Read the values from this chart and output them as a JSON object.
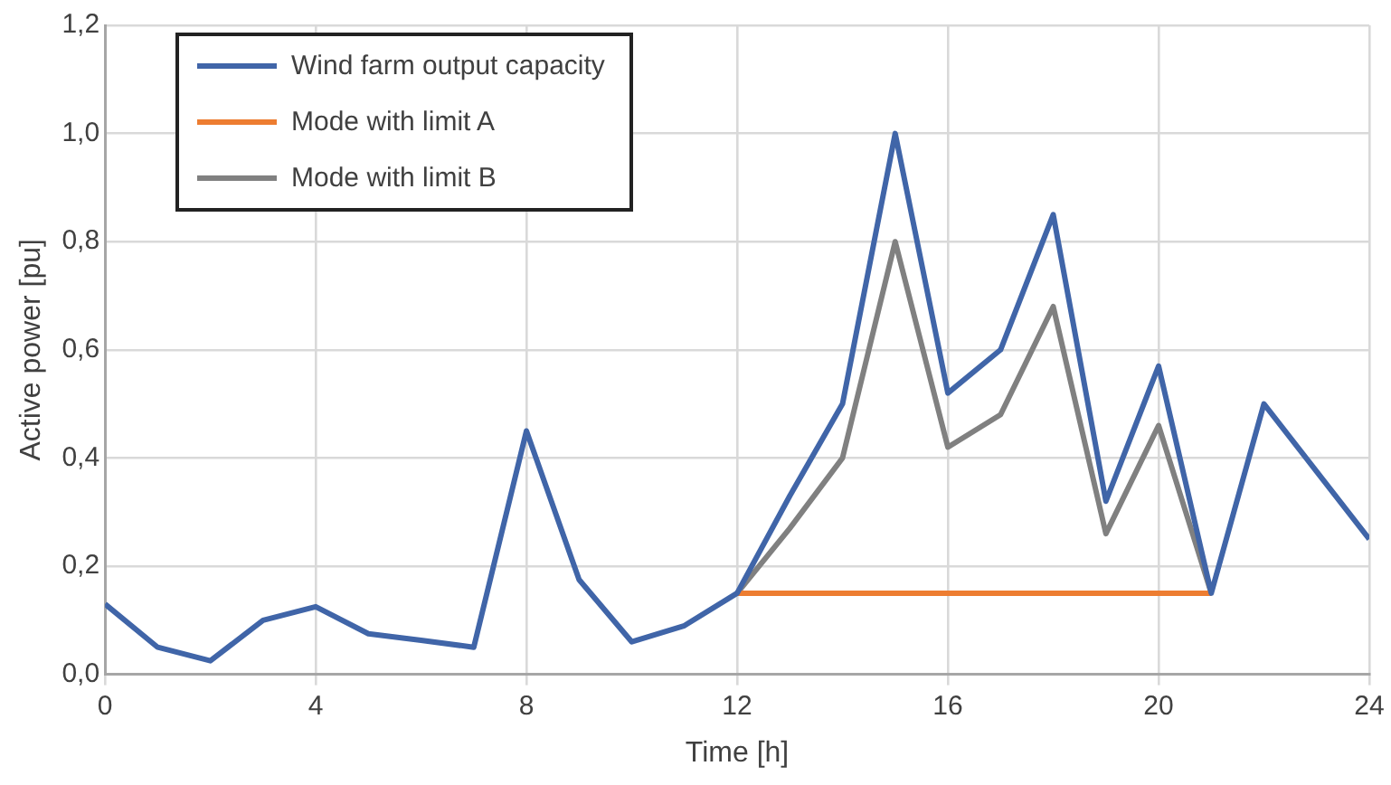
{
  "chart_data": {
    "type": "line",
    "xlabel": "Time [h]",
    "ylabel": "Active power [pu]",
    "xlim": [
      0,
      24
    ],
    "xticks": [
      0,
      4,
      8,
      12,
      16,
      20,
      24
    ],
    "ylim": [
      0,
      1.2
    ],
    "yticks": [
      {
        "value": 0,
        "label": "0,0"
      },
      {
        "value": 0.2,
        "label": "0,2"
      },
      {
        "value": 0.4,
        "label": "0,4"
      },
      {
        "value": 0.6,
        "label": "0,6"
      },
      {
        "value": 0.8,
        "label": "0,8"
      },
      {
        "value": 1.0,
        "label": "1,0"
      },
      {
        "value": 1.2,
        "label": "1,2"
      }
    ],
    "grid": true,
    "legend": "top left",
    "marker": "none",
    "line_style": "solid",
    "series": [
      {
        "name": "Wind farm output capacity",
        "color": "#4065a8",
        "x": [
          0,
          1,
          2,
          3,
          4,
          5,
          6,
          7,
          8,
          9,
          10,
          11,
          12,
          13,
          14,
          15,
          16,
          17,
          18,
          19,
          20,
          21,
          22,
          23,
          24
        ],
        "values": [
          0.13,
          0.05,
          0.025,
          0.1,
          0.125,
          0.075,
          0.063,
          0.05,
          0.45,
          0.175,
          0.06,
          0.09,
          0.15,
          0.33,
          0.5,
          1.0,
          0.52,
          0.6,
          0.85,
          0.32,
          0.57,
          0.15,
          0.5,
          0.375,
          0.25
        ]
      },
      {
        "name": "Mode with limit A",
        "color": "#ed7d31",
        "x": [
          12,
          21
        ],
        "values": [
          0.15,
          0.15
        ]
      },
      {
        "name": "Mode with limit B",
        "color": "#808080",
        "x": [
          12,
          13,
          14,
          15,
          16,
          17,
          18,
          19,
          20,
          21
        ],
        "values": [
          0.15,
          0.27,
          0.4,
          0.8,
          0.42,
          0.48,
          0.68,
          0.26,
          0.46,
          0.15
        ]
      }
    ]
  }
}
